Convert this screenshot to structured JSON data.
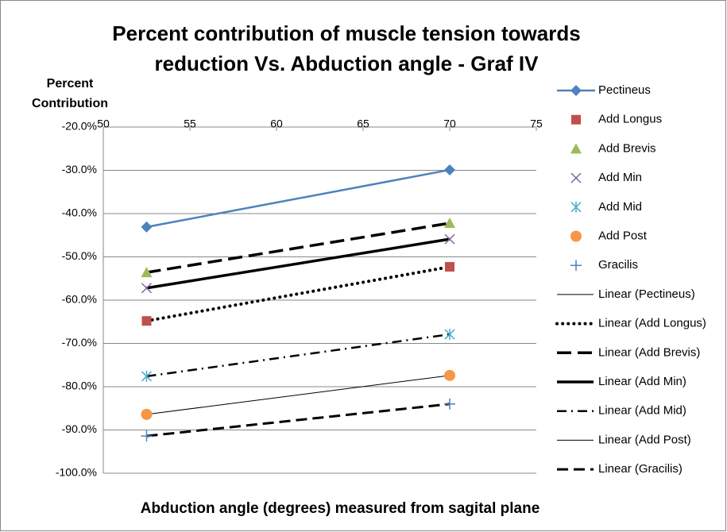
{
  "chart_data": {
    "type": "scatter",
    "title": [
      "Percent contribution of muscle tension towards",
      "reduction Vs. Abduction angle - Graf IV"
    ],
    "y_label": [
      "Percent",
      "Contribution"
    ],
    "x_label": "Abduction angle (degrees)  measured from sagital plane",
    "x": [
      52.5,
      70
    ],
    "xlim": [
      50,
      75
    ],
    "xticks": [
      50,
      55,
      60,
      65,
      70,
      75
    ],
    "ylim": [
      -100,
      -20
    ],
    "yticks": [
      {
        "value": -20,
        "label": "-20.0%"
      },
      {
        "value": -30,
        "label": "-30.0%"
      },
      {
        "value": -40,
        "label": "-40.0%"
      },
      {
        "value": -50,
        "label": "-50.0%"
      },
      {
        "value": -60,
        "label": "-60.0%"
      },
      {
        "value": -70,
        "label": "-70.0%"
      },
      {
        "value": -80,
        "label": "-80.0%"
      },
      {
        "value": -90,
        "label": "-90.0%"
      },
      {
        "value": -100,
        "label": "-100.0%"
      }
    ],
    "grid": true,
    "legend": "right",
    "series": [
      {
        "name": "Pectineus",
        "color": "#4f81bd",
        "marker": "diamond",
        "line": true,
        "values": [
          -43.1,
          -29.9
        ],
        "trendline": {
          "name": "Linear (Pectineus)",
          "style": "thin"
        }
      },
      {
        "name": "Add Longus",
        "color": "#c0504d",
        "marker": "square",
        "line": false,
        "values": [
          -64.8,
          -52.3
        ],
        "trendline": {
          "name": "Linear (Add Longus)",
          "style": "dotted"
        }
      },
      {
        "name": "Add Brevis",
        "color": "#9bbb59",
        "marker": "triangle",
        "line": false,
        "values": [
          -53.6,
          -42.2
        ],
        "trendline": {
          "name": "Linear (Add Brevis)",
          "style": "longdash"
        }
      },
      {
        "name": "Add Min",
        "color": "#8064a2",
        "marker": "x",
        "line": false,
        "values": [
          -57.2,
          -45.9
        ],
        "trendline": {
          "name": "Linear (Add Min)",
          "style": "thick"
        }
      },
      {
        "name": "Add Mid",
        "color": "#4bacc6",
        "marker": "asterisk",
        "line": false,
        "values": [
          -77.6,
          -67.9
        ],
        "trendline": {
          "name": "Linear (Add Mid)",
          "style": "dashdot"
        }
      },
      {
        "name": "Add Post",
        "color": "#f79646",
        "marker": "circle",
        "line": false,
        "values": [
          -86.4,
          -77.4
        ],
        "trendline": {
          "name": "Linear (Add Post)",
          "style": "thin"
        }
      },
      {
        "name": "Gracilis",
        "color": "#4f81bd",
        "marker": "plus",
        "line": false,
        "values": [
          -91.4,
          -84.0
        ],
        "trendline": {
          "name": "Linear (Gracilis)",
          "style": "dash"
        }
      }
    ]
  }
}
